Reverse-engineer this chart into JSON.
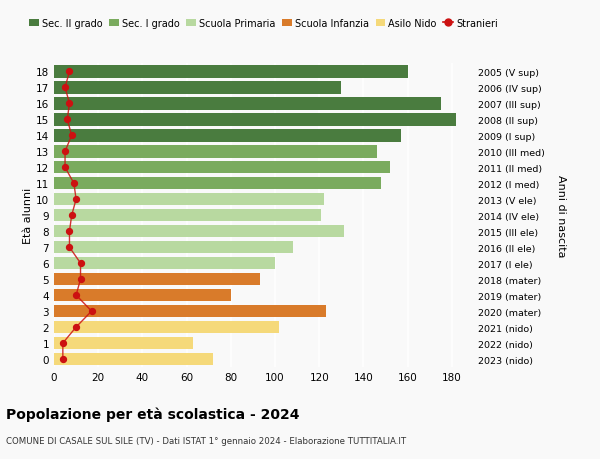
{
  "ages": [
    18,
    17,
    16,
    15,
    14,
    13,
    12,
    11,
    10,
    9,
    8,
    7,
    6,
    5,
    4,
    3,
    2,
    1,
    0
  ],
  "labels_right": [
    "2005 (V sup)",
    "2006 (IV sup)",
    "2007 (III sup)",
    "2008 (II sup)",
    "2009 (I sup)",
    "2010 (III med)",
    "2011 (II med)",
    "2012 (I med)",
    "2013 (V ele)",
    "2014 (IV ele)",
    "2015 (III ele)",
    "2016 (II ele)",
    "2017 (I ele)",
    "2018 (mater)",
    "2019 (mater)",
    "2020 (mater)",
    "2021 (nido)",
    "2022 (nido)",
    "2023 (nido)"
  ],
  "bar_values": [
    160,
    130,
    175,
    182,
    157,
    146,
    152,
    148,
    122,
    121,
    131,
    108,
    100,
    93,
    80,
    123,
    102,
    63,
    72
  ],
  "bar_colors": [
    "#4a7c3f",
    "#4a7c3f",
    "#4a7c3f",
    "#4a7c3f",
    "#4a7c3f",
    "#7aab5e",
    "#7aab5e",
    "#7aab5e",
    "#b8d9a0",
    "#b8d9a0",
    "#b8d9a0",
    "#b8d9a0",
    "#b8d9a0",
    "#d97b2a",
    "#d97b2a",
    "#d97b2a",
    "#f5d97a",
    "#f5d97a",
    "#f5d97a"
  ],
  "stranieri_values": [
    7,
    5,
    7,
    6,
    8,
    5,
    5,
    9,
    10,
    8,
    7,
    7,
    12,
    12,
    10,
    17,
    10,
    4,
    4
  ],
  "legend_labels": [
    "Sec. II grado",
    "Sec. I grado",
    "Scuola Primaria",
    "Scuola Infanzia",
    "Asilo Nido",
    "Stranieri"
  ],
  "legend_colors": [
    "#4a7c3f",
    "#7aab5e",
    "#b8d9a0",
    "#d97b2a",
    "#f5d97a",
    "#cc1111"
  ],
  "title": "Popolazione per età scolastica - 2024",
  "subtitle": "COMUNE DI CASALE SUL SILE (TV) - Dati ISTAT 1° gennaio 2024 - Elaborazione TUTTITALIA.IT",
  "ylabel_left": "Età alunni",
  "ylabel_right": "Anni di nascita",
  "xlim": [
    0,
    190
  ],
  "xticks": [
    0,
    20,
    40,
    60,
    80,
    100,
    120,
    140,
    160,
    180
  ],
  "background_color": "#f9f9f9",
  "bar_height": 0.78
}
